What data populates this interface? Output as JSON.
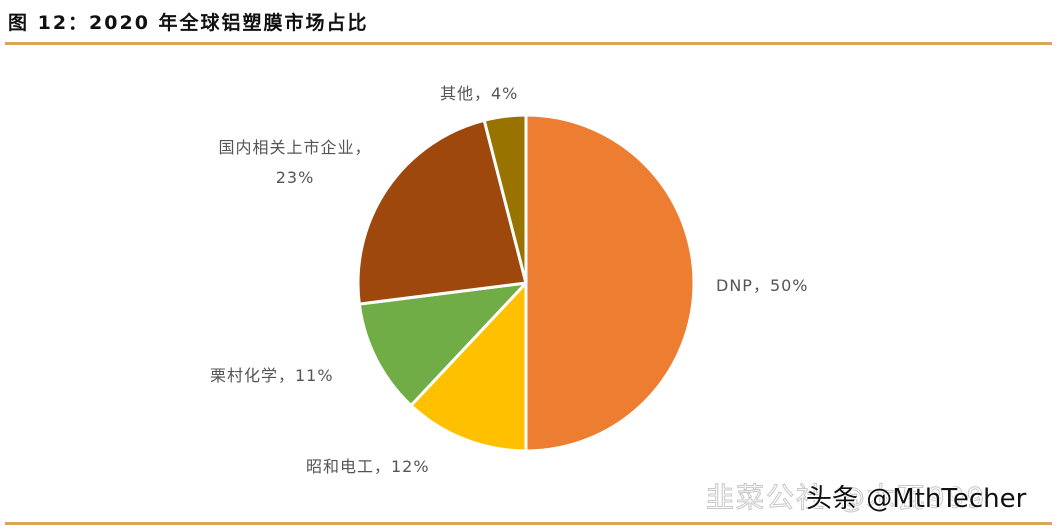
{
  "title": "图 12：2020 年全球铝塑膜市场占比",
  "colors": {
    "rule": "#d9a45c",
    "DNP": "#ed7d31",
    "showa_denko": "#ffc000",
    "yulchon": "#70ad47",
    "domestic": "#9e480e",
    "other": "#997300"
  },
  "labels": {
    "dnp": "DNP，50%",
    "showa": "昭和电工，12%",
    "yulchon": "栗村化学，11%",
    "domestic": "国内相关上市企业，23%",
    "other": "其他，4%"
  },
  "watermark": {
    "ghost": "韭菜公社 @木瓦999",
    "main": "头条 @MthTecher"
  },
  "chart_data": {
    "type": "pie",
    "title": "2020年全球铝塑膜市场占比",
    "start_angle": "12 o'clock, clockwise",
    "categories": [
      "DNP",
      "昭和电工",
      "栗村化学",
      "国内相关上市企业",
      "其他"
    ],
    "values": [
      50,
      12,
      11,
      23,
      4
    ],
    "unit": "%",
    "colors": [
      "#ed7d31",
      "#ffc000",
      "#70ad47",
      "#9e480e",
      "#997300"
    ],
    "legend": "none (data labels outside slices)"
  }
}
